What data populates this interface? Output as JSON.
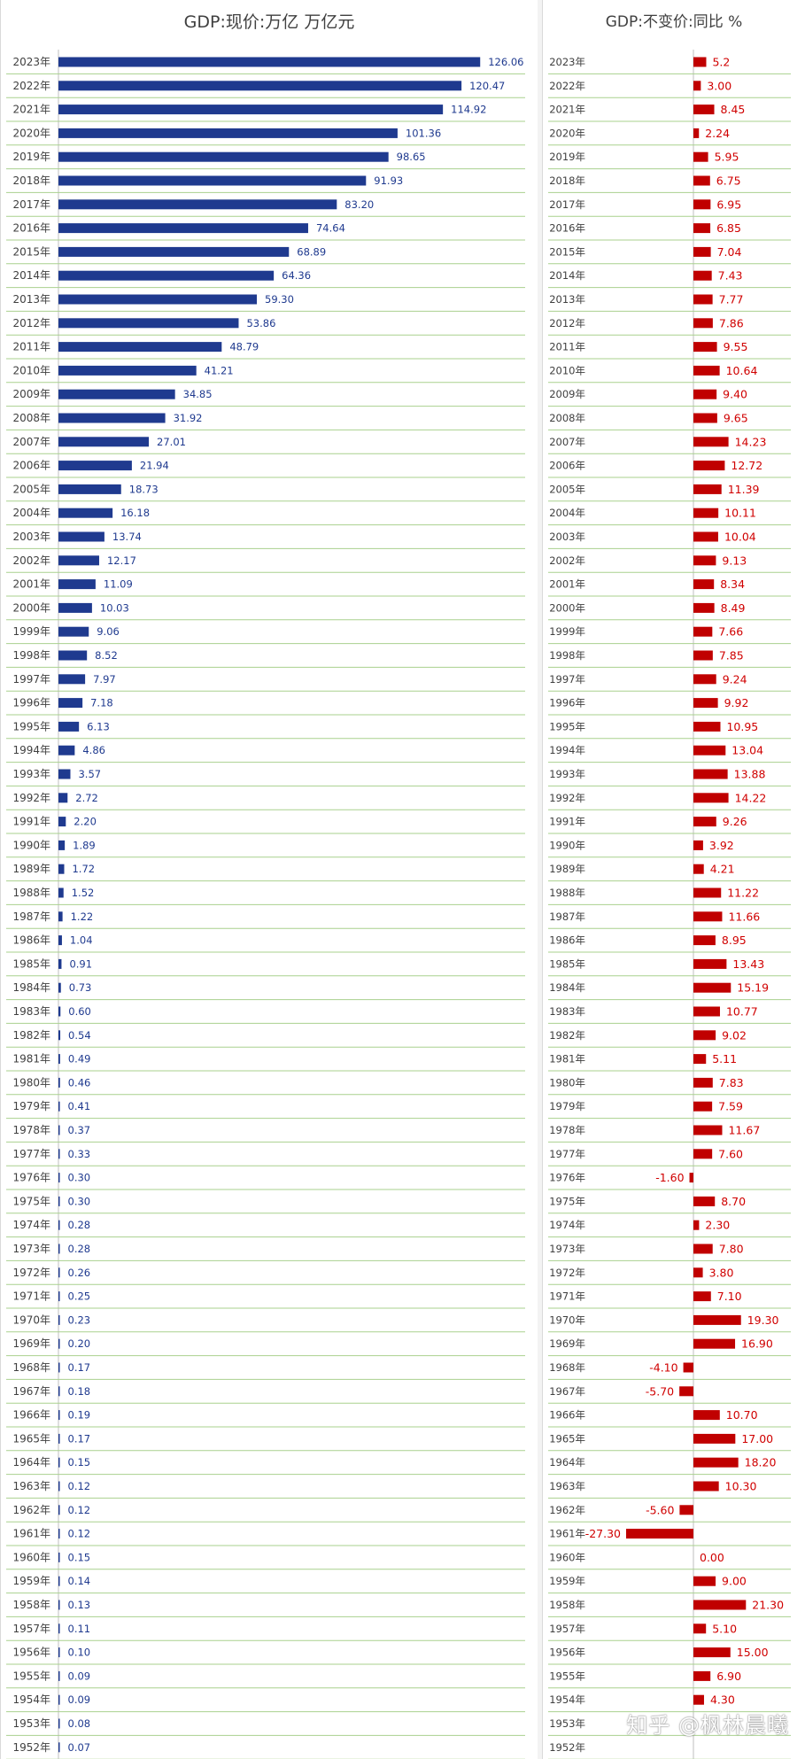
{
  "left_chart": {
    "title": "GDP:现价:万亿 万亿元"
  },
  "right_chart": {
    "title": "GDP:不变价:同比 %"
  },
  "watermark": "知乎 @枫林晨曦",
  "colors": {
    "level_bar": "#1f3a8f",
    "growth_bar": "#c00000",
    "growth_label": "#d00000",
    "level_label": "#1f3a8f",
    "gridline": "#a9d18e"
  },
  "chart_data": [
    {
      "type": "bar",
      "orientation": "horizontal",
      "title": "GDP:现价:万亿 万亿元",
      "categories": [
        "2023年",
        "2022年",
        "2021年",
        "2020年",
        "2019年",
        "2018年",
        "2017年",
        "2016年",
        "2015年",
        "2014年",
        "2013年",
        "2012年",
        "2011年",
        "2010年",
        "2009年",
        "2008年",
        "2007年",
        "2006年",
        "2005年",
        "2004年",
        "2003年",
        "2002年",
        "2001年",
        "2000年",
        "1999年",
        "1998年",
        "1997年",
        "1996年",
        "1995年",
        "1994年",
        "1993年",
        "1992年",
        "1991年",
        "1990年",
        "1989年",
        "1988年",
        "1987年",
        "1986年",
        "1985年",
        "1984年",
        "1983年",
        "1982年",
        "1981年",
        "1980年",
        "1979年",
        "1978年",
        "1977年",
        "1976年",
        "1975年",
        "1974年",
        "1973年",
        "1972年",
        "1971年",
        "1970年",
        "1969年",
        "1968年",
        "1967年",
        "1966年",
        "1965年",
        "1964年",
        "1963年",
        "1962年",
        "1961年",
        "1960年",
        "1959年",
        "1958年",
        "1957年",
        "1956年",
        "1955年",
        "1954年",
        "1953年",
        "1952年"
      ],
      "values": [
        126.06,
        120.47,
        114.92,
        101.36,
        98.65,
        91.93,
        83.2,
        74.64,
        68.89,
        64.36,
        59.3,
        53.86,
        48.79,
        41.21,
        34.85,
        31.92,
        27.01,
        21.94,
        18.73,
        16.18,
        13.74,
        12.17,
        11.09,
        10.03,
        9.06,
        8.52,
        7.97,
        7.18,
        6.13,
        4.86,
        3.57,
        2.72,
        2.2,
        1.89,
        1.72,
        1.52,
        1.22,
        1.04,
        0.91,
        0.73,
        0.6,
        0.54,
        0.49,
        0.46,
        0.41,
        0.37,
        0.33,
        0.3,
        0.3,
        0.28,
        0.28,
        0.26,
        0.25,
        0.23,
        0.2,
        0.17,
        0.18,
        0.19,
        0.17,
        0.15,
        0.12,
        0.12,
        0.12,
        0.15,
        0.14,
        0.13,
        0.11,
        0.1,
        0.09,
        0.09,
        0.08,
        0.07
      ],
      "labels": [
        "126.06",
        "120.47",
        "114.92",
        "101.36",
        "98.65",
        "91.93",
        "83.20",
        "74.64",
        "68.89",
        "64.36",
        "59.30",
        "53.86",
        "48.79",
        "41.21",
        "34.85",
        "31.92",
        "27.01",
        "21.94",
        "18.73",
        "16.18",
        "13.74",
        "12.17",
        "11.09",
        "10.03",
        "9.06",
        "8.52",
        "7.97",
        "7.18",
        "6.13",
        "4.86",
        "3.57",
        "2.72",
        "2.20",
        "1.89",
        "1.72",
        "1.52",
        "1.22",
        "1.04",
        "0.91",
        "0.73",
        "0.60",
        "0.54",
        "0.49",
        "0.46",
        "0.41",
        "0.37",
        "0.33",
        "0.30",
        "0.30",
        "0.28",
        "0.28",
        "0.26",
        "0.25",
        "0.23",
        "0.20",
        "0.17",
        "0.18",
        "0.19",
        "0.17",
        "0.15",
        "0.12",
        "0.12",
        "0.12",
        "0.15",
        "0.14",
        "0.13",
        "0.11",
        "0.10",
        "0.09",
        "0.09",
        "0.08",
        "0.07"
      ],
      "xlim": [
        0,
        135
      ],
      "grid": "horizontal"
    },
    {
      "type": "bar",
      "orientation": "horizontal",
      "title": "GDP:不变价:同比 %",
      "categories": [
        "2023年",
        "2022年",
        "2021年",
        "2020年",
        "2019年",
        "2018年",
        "2017年",
        "2016年",
        "2015年",
        "2014年",
        "2013年",
        "2012年",
        "2011年",
        "2010年",
        "2009年",
        "2008年",
        "2007年",
        "2006年",
        "2005年",
        "2004年",
        "2003年",
        "2002年",
        "2001年",
        "2000年",
        "1999年",
        "1998年",
        "1997年",
        "1996年",
        "1995年",
        "1994年",
        "1993年",
        "1992年",
        "1991年",
        "1990年",
        "1989年",
        "1988年",
        "1987年",
        "1986年",
        "1985年",
        "1984年",
        "1983年",
        "1982年",
        "1981年",
        "1980年",
        "1979年",
        "1978年",
        "1977年",
        "1976年",
        "1975年",
        "1974年",
        "1973年",
        "1972年",
        "1971年",
        "1970年",
        "1969年",
        "1968年",
        "1967年",
        "1966年",
        "1965年",
        "1964年",
        "1963年",
        "1962年",
        "1961年",
        "1960年",
        "1959年",
        "1958年",
        "1957年",
        "1956年",
        "1955年",
        "1954年",
        "1953年",
        "1952年"
      ],
      "values": [
        5.2,
        3.0,
        8.45,
        2.24,
        5.95,
        6.75,
        6.95,
        6.85,
        7.04,
        7.43,
        7.77,
        7.86,
        9.55,
        10.64,
        9.4,
        9.65,
        14.23,
        12.72,
        11.39,
        10.11,
        10.04,
        9.13,
        8.34,
        8.49,
        7.66,
        7.85,
        9.24,
        9.92,
        10.95,
        13.04,
        13.88,
        14.22,
        9.26,
        3.92,
        4.21,
        11.22,
        11.66,
        8.95,
        13.43,
        15.19,
        10.77,
        9.02,
        5.11,
        7.83,
        7.59,
        11.67,
        7.6,
        -1.6,
        8.7,
        2.3,
        7.8,
        3.8,
        7.1,
        19.3,
        16.9,
        -4.1,
        -5.7,
        10.7,
        17.0,
        18.2,
        10.3,
        -5.6,
        -27.3,
        0.0,
        9.0,
        21.3,
        5.1,
        15.0,
        6.9,
        4.3,
        null,
        null
      ],
      "labels": [
        "5.2",
        "3.00",
        "8.45",
        "2.24",
        "5.95",
        "6.75",
        "6.95",
        "6.85",
        "7.04",
        "7.43",
        "7.77",
        "7.86",
        "9.55",
        "10.64",
        "9.40",
        "9.65",
        "14.23",
        "12.72",
        "11.39",
        "10.11",
        "10.04",
        "9.13",
        "8.34",
        "8.49",
        "7.66",
        "7.85",
        "9.24",
        "9.92",
        "10.95",
        "13.04",
        "13.88",
        "14.22",
        "9.26",
        "3.92",
        "4.21",
        "11.22",
        "11.66",
        "8.95",
        "13.43",
        "15.19",
        "10.77",
        "9.02",
        "5.11",
        "7.83",
        "7.59",
        "11.67",
        "7.60",
        "-1.60",
        "8.70",
        "2.30",
        "7.80",
        "3.80",
        "7.10",
        "19.30",
        "16.90",
        "-4.10",
        "-5.70",
        "10.70",
        "17.00",
        "18.20",
        "10.30",
        "-5.60",
        "-27.30",
        "0.00",
        "9.00",
        "21.30",
        "5.10",
        "15.00",
        "6.90",
        "4.30",
        "",
        ""
      ],
      "xlim": [
        -30,
        30
      ],
      "grid": "horizontal"
    }
  ]
}
